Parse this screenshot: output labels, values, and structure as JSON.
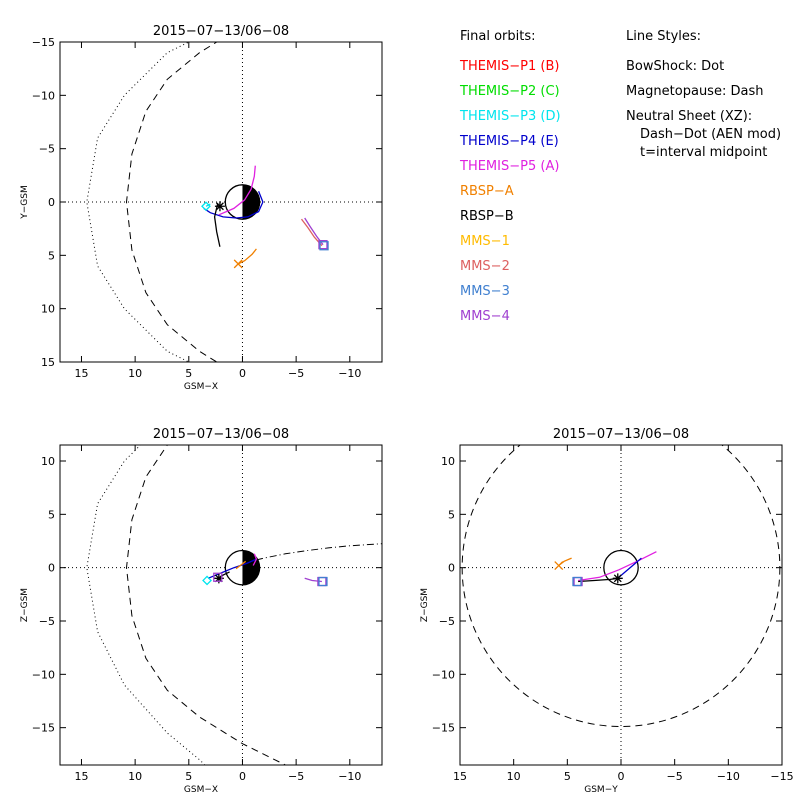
{
  "legend": {
    "heading": "Final orbits:",
    "entries": [
      {
        "label": "THEMIS−P1 (B)",
        "color": "#ff0000"
      },
      {
        "label": "THEMIS−P2 (C)",
        "color": "#00dd00"
      },
      {
        "label": "THEMIS−P3 (D)",
        "color": "#00e5ee"
      },
      {
        "label": "THEMIS−P4 (E)",
        "color": "#0000cc"
      },
      {
        "label": "THEMIS−P5 (A)",
        "color": "#e020e0"
      },
      {
        "label": "RBSP−A",
        "color": "#f08000"
      },
      {
        "label": "RBSP−B",
        "color": "#000000"
      },
      {
        "label": "MMS−1",
        "color": "#ffbb00"
      },
      {
        "label": "MMS−2",
        "color": "#dd6060"
      },
      {
        "label": "MMS−3",
        "color": "#4080d0"
      },
      {
        "label": "MMS−4",
        "color": "#a040d0"
      }
    ]
  },
  "line_styles": {
    "heading": "Line Styles:",
    "lines": [
      "BowShock: Dot",
      "Magnetopause: Dash",
      "Neutral Sheet (XZ):",
      "Dash−Dot (AEN mod)",
      "t=interval midpoint"
    ]
  },
  "chart_data": [
    {
      "type": "line",
      "title": "2015−07−13/06−08",
      "xlabel": "GSM−X",
      "ylabel": "Y−GSM",
      "xlim": [
        17,
        -13
      ],
      "ylim": [
        15,
        -15
      ],
      "xticks": [
        15,
        10,
        5,
        0,
        -5,
        -10
      ],
      "xtick_labels": [
        "15",
        "10",
        "5",
        "0",
        "−5",
        "−10"
      ],
      "yticks": [
        -15,
        -10,
        -5,
        0,
        5,
        10,
        15
      ],
      "ytick_labels": [
        "−15",
        "−10",
        "−5",
        "0",
        "5",
        "10",
        "15"
      ],
      "grid": "dotted zero lines",
      "boundaries": [
        {
          "name": "bowshock",
          "style": "dot",
          "x": [
            -4.5,
            1,
            7,
            11,
            13.5,
            14.5,
            13.5,
            11,
            7,
            1,
            -4.5
          ],
          "y": [
            -19,
            -17,
            -14,
            -10,
            -6,
            0,
            6,
            10,
            14,
            17,
            19
          ]
        },
        {
          "name": "magnetopause",
          "style": "dash",
          "x": [
            -12,
            -5,
            0,
            4,
            7,
            9,
            10.3,
            10.8,
            10.3,
            9,
            7,
            4,
            0,
            -5,
            -12
          ],
          "y": [
            -22,
            -19,
            -16.5,
            -14,
            -11.5,
            -8.5,
            -4.5,
            0,
            4.5,
            8.5,
            11.5,
            14,
            16.5,
            19,
            22
          ]
        }
      ],
      "series": [
        {
          "color": "#0000cc",
          "x": [
            -1.5,
            -1.9,
            -1.5,
            -0.5,
            0.6,
            1.8,
            3.0,
            3.6
          ],
          "y": [
            -1.0,
            0.0,
            0.9,
            1.4,
            1.5,
            1.4,
            1.0,
            0.6
          ]
        },
        {
          "color": "#e020e0",
          "x": [
            -1.2,
            -1.1,
            -0.8,
            -0.2,
            0.8,
            2.2
          ],
          "y": [
            -3.4,
            -2.4,
            -1.2,
            -0.2,
            0.6,
            1.2
          ]
        },
        {
          "color": "#00e5ee",
          "x": [
            3.0,
            3.4
          ],
          "y": [
            0.2,
            0.4
          ]
        },
        {
          "color": "#000000",
          "x": [
            2.3,
            2.6,
            2.4,
            2.1
          ],
          "y": [
            0.1,
            1.4,
            2.8,
            4.2
          ]
        },
        {
          "color": "#f08000",
          "x": [
            0.4,
            -0.2,
            -0.9,
            -1.3
          ],
          "y": [
            5.8,
            5.5,
            4.9,
            4.4
          ]
        },
        {
          "color": "#a040d0",
          "x": [
            -5.8,
            -6.3,
            -6.9,
            -7.5
          ],
          "y": [
            1.5,
            2.3,
            3.2,
            4.0
          ]
        },
        {
          "color": "#dd6060",
          "x": [
            -5.5,
            -6.1,
            -6.7,
            -7.4
          ],
          "y": [
            1.6,
            2.4,
            3.3,
            4.1
          ]
        }
      ],
      "markers": [
        {
          "symbol": "x",
          "color": "#f08000",
          "x": 0.4,
          "y": 5.8
        },
        {
          "symbol": "asterisk",
          "color": "#000000",
          "x": 2.1,
          "y": 0.4
        },
        {
          "symbol": "diamond",
          "color": "#00e5ee",
          "x": 3.4,
          "y": 0.4
        },
        {
          "symbol": "square",
          "color": "#a040d0",
          "x": -7.5,
          "y": 4.0
        },
        {
          "symbol": "square",
          "color": "#4080d0",
          "x": -7.6,
          "y": 4.1
        }
      ]
    },
    {
      "type": "line",
      "title": "2015−07−13/06−08",
      "xlabel": "GSM−X",
      "ylabel": "Z−GSM",
      "xlim": [
        17,
        -13
      ],
      "ylim": [
        -18.5,
        11.5
      ],
      "xticks": [
        15,
        10,
        5,
        0,
        -5,
        -10
      ],
      "xtick_labels": [
        "15",
        "10",
        "5",
        "0",
        "−5",
        "−10"
      ],
      "yticks": [
        -15,
        -10,
        -5,
        0,
        5,
        10
      ],
      "ytick_labels": [
        "−15",
        "−10",
        "−5",
        "0",
        "5",
        "10"
      ],
      "grid": "dotted zero lines",
      "boundaries": [
        {
          "name": "bowshock",
          "style": "dot",
          "x": [
            -4.5,
            1,
            7,
            11,
            13.5,
            14.5,
            13.5,
            11,
            7,
            4,
            3
          ],
          "y": [
            19,
            17,
            14,
            10,
            6,
            0,
            -6,
            -11,
            -15.5,
            -18,
            -19
          ]
        },
        {
          "name": "magnetopause",
          "style": "dash",
          "x": [
            -12,
            -5,
            0,
            4,
            7,
            9,
            10.3,
            10.8,
            10.3,
            9,
            7,
            4,
            0,
            -5,
            -12
          ],
          "y": [
            22,
            19,
            16.5,
            14,
            11.5,
            8.5,
            4.5,
            0,
            -4.5,
            -8.5,
            -11.5,
            -14,
            -16.5,
            -19,
            -22
          ]
        },
        {
          "name": "neutral-sheet",
          "style": "dashdot",
          "x": [
            0,
            -2,
            -4,
            -6,
            -8,
            -10,
            -13
          ],
          "y": [
            0.4,
            0.9,
            1.3,
            1.6,
            1.85,
            2.05,
            2.25
          ]
        }
      ],
      "series": [
        {
          "color": "#0000cc",
          "x": [
            3.2,
            2.0,
            0.8,
            -0.4,
            -1.3
          ],
          "y": [
            -1.0,
            -0.5,
            0.0,
            0.4,
            0.8
          ]
        },
        {
          "color": "#e020e0",
          "x": [
            -1.0,
            -1.3,
            -1.1
          ],
          "y": [
            0.2,
            0.8,
            1.3
          ]
        },
        {
          "color": "#f08000",
          "x": [
            0.6,
            0.2,
            -0.3
          ],
          "y": [
            -0.1,
            0.2,
            0.6
          ]
        },
        {
          "color": "#000000",
          "x": [
            2.2,
            1.8,
            1.2
          ],
          "y": [
            -1.0,
            -0.7,
            -0.4
          ]
        },
        {
          "color": "#a040d0",
          "x": [
            -5.8,
            -6.5,
            -7.4
          ],
          "y": [
            -1.0,
            -1.2,
            -1.3
          ]
        }
      ],
      "markers": [
        {
          "symbol": "diamond",
          "color": "#00e5ee",
          "x": 3.3,
          "y": -1.2
        },
        {
          "symbol": "asterisk",
          "color": "#000000",
          "x": 2.2,
          "y": -1.0
        },
        {
          "symbol": "square",
          "color": "#a040d0",
          "x": 2.3,
          "y": -0.9
        },
        {
          "symbol": "square",
          "color": "#a040d0",
          "x": -7.4,
          "y": -1.3
        },
        {
          "symbol": "square",
          "color": "#4080d0",
          "x": -7.5,
          "y": -1.3
        }
      ]
    },
    {
      "type": "line",
      "title": "2015−07−13/06−08",
      "xlabel": "GSM−Y",
      "ylabel": "Z−GSM",
      "xlim": [
        15,
        -15
      ],
      "ylim": [
        -18.5,
        11.5
      ],
      "xticks": [
        15,
        10,
        5,
        0,
        -5,
        -10,
        -15
      ],
      "xtick_labels": [
        "15",
        "10",
        "5",
        "0",
        "−5",
        "−10",
        "−15"
      ],
      "yticks": [
        -15,
        -10,
        -5,
        0,
        5,
        10
      ],
      "ytick_labels": [
        "−15",
        "−10",
        "−5",
        "0",
        "5",
        "10"
      ],
      "grid": "dotted zero lines",
      "boundaries": [
        {
          "name": "magnetopause",
          "style": "dash",
          "circle": {
            "cx": 0,
            "cy": 0,
            "r": 14.8
          }
        }
      ],
      "series": [
        {
          "color": "#e020e0",
          "x": [
            4.0,
            2.0,
            0.2,
            -1.5,
            -3.3
          ],
          "y": [
            -1.2,
            -0.9,
            -0.2,
            0.6,
            1.5
          ]
        },
        {
          "color": "#0000cc",
          "x": [
            0.2,
            -0.5,
            -1.2,
            -1.9
          ],
          "y": [
            -0.9,
            -0.3,
            0.3,
            0.9
          ]
        },
        {
          "color": "#000000",
          "x": [
            4.0,
            2.5,
            1.0,
            0.3
          ],
          "y": [
            -1.3,
            -1.2,
            -1.1,
            -1.0
          ]
        },
        {
          "color": "#f08000",
          "x": [
            5.8,
            5.3,
            4.6
          ],
          "y": [
            0.2,
            0.6,
            0.9
          ]
        }
      ],
      "markers": [
        {
          "symbol": "square",
          "color": "#a040d0",
          "x": 4.0,
          "y": -1.3
        },
        {
          "symbol": "square",
          "color": "#4080d0",
          "x": 4.1,
          "y": -1.3
        },
        {
          "symbol": "asterisk",
          "color": "#000000",
          "x": 0.3,
          "y": -1.0
        },
        {
          "symbol": "x",
          "color": "#f08000",
          "x": 5.8,
          "y": 0.2
        }
      ]
    }
  ]
}
